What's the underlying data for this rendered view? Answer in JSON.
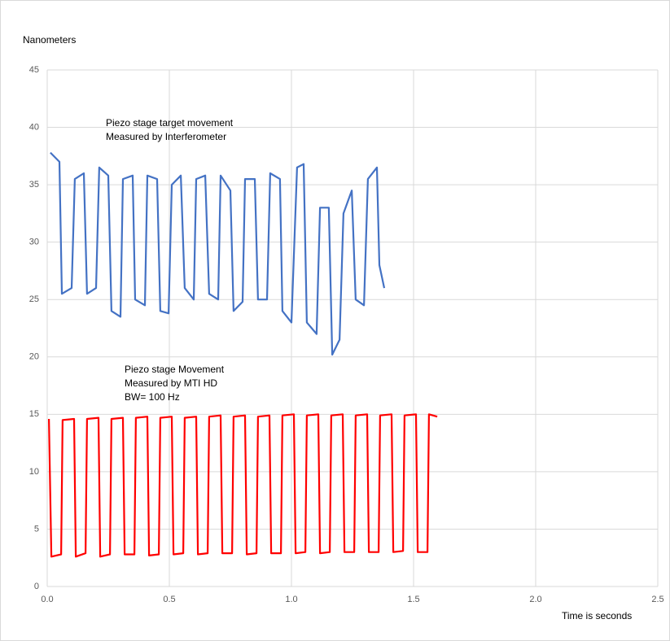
{
  "chart_data": {
    "type": "line",
    "ylabel": "Nanometers",
    "xlabel": "Time is seconds",
    "annotations": [
      [
        "Piezo stage target  movement",
        "Measured by Interferometer"
      ],
      [
        "Piezo stage Movement",
        "Measured by MTI HD",
        "BW= 100 Hz"
      ]
    ],
    "xlim": [
      0,
      2.5
    ],
    "xticks": [
      {
        "value": 0,
        "label": "0.0"
      },
      0.5,
      {
        "value": 1,
        "label": "1.0"
      },
      1.5,
      {
        "value": 2,
        "label": "2.0"
      },
      2.5
    ],
    "ylim": [
      0,
      45
    ],
    "yticks": [
      0,
      5,
      10,
      15,
      20,
      25,
      30,
      35,
      40,
      45
    ],
    "grid": true,
    "series": [
      {
        "color": "#4472c4",
        "x": [
          0.013,
          0.05,
          0.06,
          0.1,
          0.113,
          0.15,
          0.163,
          0.2,
          0.213,
          0.25,
          0.263,
          0.3,
          0.31,
          0.35,
          0.36,
          0.4,
          0.41,
          0.45,
          0.463,
          0.497,
          0.51,
          0.547,
          0.563,
          0.6,
          0.61,
          0.647,
          0.663,
          0.7,
          0.71,
          0.75,
          0.763,
          0.8,
          0.81,
          0.85,
          0.863,
          0.9,
          0.913,
          0.953,
          0.963,
          1.0,
          1.023,
          1.05,
          1.063,
          1.103,
          1.117,
          1.153,
          1.167,
          1.197,
          1.213,
          1.247,
          1.263,
          1.297,
          1.313,
          1.35,
          1.36,
          1.38
        ],
        "values": [
          37.8,
          37,
          25.5,
          26,
          35.5,
          36,
          25.5,
          26,
          36.5,
          35.8,
          24,
          23.5,
          35.5,
          35.8,
          25,
          24.5,
          35.8,
          35.5,
          24,
          23.8,
          35,
          35.8,
          26,
          25,
          35.5,
          35.8,
          25.5,
          25,
          35.8,
          34.5,
          24,
          24.8,
          35.5,
          35.5,
          25,
          25,
          36,
          35.5,
          24,
          23,
          36.5,
          36.8,
          23,
          22,
          33,
          33,
          20.2,
          21.5,
          32.5,
          34.5,
          25,
          24.5,
          35.5,
          36.5,
          28,
          26
        ]
      },
      {
        "color": "#ff0000",
        "x": [
          0.007,
          0.017,
          0.057,
          0.063,
          0.11,
          0.117,
          0.157,
          0.163,
          0.21,
          0.217,
          0.257,
          0.263,
          0.31,
          0.317,
          0.357,
          0.363,
          0.41,
          0.417,
          0.457,
          0.463,
          0.51,
          0.517,
          0.557,
          0.563,
          0.61,
          0.617,
          0.657,
          0.663,
          0.71,
          0.717,
          0.757,
          0.763,
          0.81,
          0.817,
          0.857,
          0.863,
          0.91,
          0.917,
          0.957,
          0.963,
          1.01,
          1.017,
          1.057,
          1.063,
          1.11,
          1.117,
          1.157,
          1.163,
          1.21,
          1.217,
          1.257,
          1.263,
          1.31,
          1.317,
          1.357,
          1.363,
          1.41,
          1.417,
          1.457,
          1.463,
          1.51,
          1.517,
          1.557,
          1.563,
          1.597
        ],
        "values": [
          14.6,
          2.6,
          2.8,
          14.5,
          14.6,
          2.6,
          2.9,
          14.6,
          14.7,
          2.6,
          2.8,
          14.6,
          14.7,
          2.8,
          2.8,
          14.7,
          14.8,
          2.7,
          2.8,
          14.7,
          14.8,
          2.8,
          2.9,
          14.7,
          14.8,
          2.8,
          2.9,
          14.8,
          14.9,
          2.9,
          2.9,
          14.8,
          14.9,
          2.8,
          2.9,
          14.8,
          14.9,
          2.9,
          2.9,
          14.9,
          15,
          2.9,
          3,
          14.9,
          15,
          2.9,
          3,
          14.9,
          15,
          3,
          3,
          14.9,
          15,
          3,
          3,
          14.9,
          15,
          3,
          3.1,
          14.9,
          15,
          3,
          3,
          15,
          14.8
        ]
      }
    ]
  }
}
